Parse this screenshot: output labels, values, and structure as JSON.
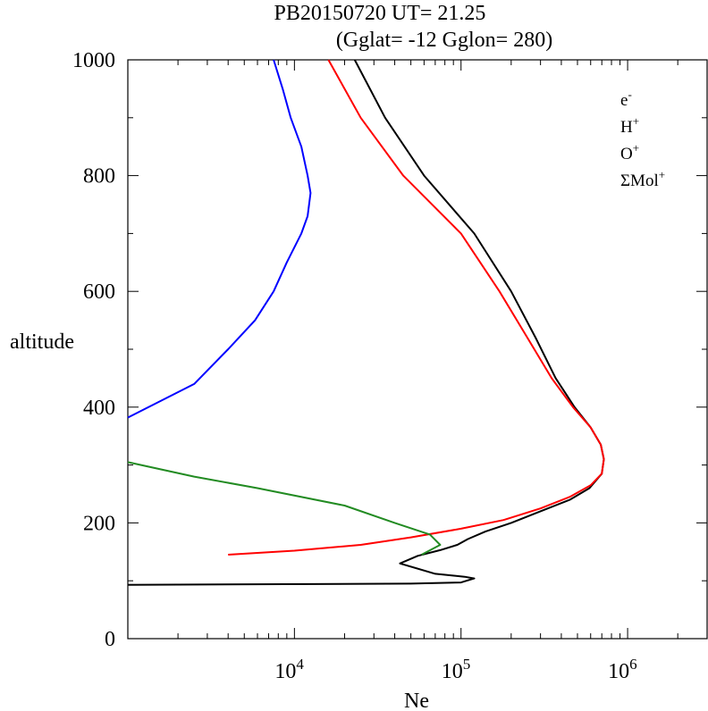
{
  "chart_data": {
    "type": "line",
    "title": "PB20150720   UT=  21.25",
    "subtitle": "(Gglat= -12   Gglon=  280)",
    "xlabel": "Ne",
    "ylabel": "altitude",
    "x_scale": "log",
    "xlim": [
      1000,
      3000000
    ],
    "ylim": [
      0,
      1000
    ],
    "x_ticks": [
      {
        "value": 10000,
        "base": "10",
        "exp": "4"
      },
      {
        "value": 100000,
        "base": "10",
        "exp": "5"
      },
      {
        "value": 1000000,
        "base": "10",
        "exp": "6"
      }
    ],
    "y_ticks": [
      {
        "value": 0,
        "label": "0"
      },
      {
        "value": 200,
        "label": "200"
      },
      {
        "value": 400,
        "label": "400"
      },
      {
        "value": 600,
        "label": "600"
      },
      {
        "value": 800,
        "label": "800"
      },
      {
        "value": 1000,
        "label": "1000"
      }
    ],
    "legend_position": "top-right",
    "series": [
      {
        "name": "e-",
        "label_base": "e",
        "label_sup": "-",
        "color": "#000000",
        "points": [
          [
            1000,
            93
          ],
          [
            50000,
            95
          ],
          [
            100000,
            97
          ],
          [
            120000,
            104
          ],
          [
            105000,
            107
          ],
          [
            70000,
            112
          ],
          [
            43000,
            130
          ],
          [
            55000,
            143
          ],
          [
            75000,
            153
          ],
          [
            95000,
            162
          ],
          [
            110000,
            172
          ],
          [
            140000,
            185
          ],
          [
            200000,
            200
          ],
          [
            300000,
            220
          ],
          [
            450000,
            240
          ],
          [
            590000,
            260
          ],
          [
            700000,
            285
          ],
          [
            720000,
            310
          ],
          [
            690000,
            335
          ],
          [
            600000,
            365
          ],
          [
            480000,
            400
          ],
          [
            370000,
            450
          ],
          [
            280000,
            520
          ],
          [
            200000,
            600
          ],
          [
            120000,
            700
          ],
          [
            60000,
            800
          ],
          [
            35000,
            900
          ],
          [
            23000,
            1000
          ]
        ]
      },
      {
        "name": "H+",
        "label_base": "H",
        "label_sup": "+",
        "color": "#0000ff",
        "points": [
          [
            1000,
            382
          ],
          [
            2500,
            440
          ],
          [
            4000,
            500
          ],
          [
            5800,
            550
          ],
          [
            7500,
            600
          ],
          [
            9000,
            650
          ],
          [
            11000,
            700
          ],
          [
            12000,
            730
          ],
          [
            12500,
            770
          ],
          [
            12000,
            800
          ],
          [
            11000,
            850
          ],
          [
            9500,
            900
          ],
          [
            8500,
            950
          ],
          [
            7500,
            1000
          ]
        ]
      },
      {
        "name": "O+",
        "label_base": "O",
        "label_sup": "+",
        "color": "#ff0000",
        "points": [
          [
            4000,
            145
          ],
          [
            10000,
            152
          ],
          [
            25000,
            162
          ],
          [
            50000,
            175
          ],
          [
            100000,
            190
          ],
          [
            180000,
            205
          ],
          [
            300000,
            225
          ],
          [
            450000,
            245
          ],
          [
            600000,
            265
          ],
          [
            700000,
            285
          ],
          [
            720000,
            310
          ],
          [
            690000,
            335
          ],
          [
            600000,
            365
          ],
          [
            470000,
            400
          ],
          [
            350000,
            450
          ],
          [
            250000,
            520
          ],
          [
            170000,
            600
          ],
          [
            100000,
            700
          ],
          [
            45000,
            800
          ],
          [
            25000,
            900
          ],
          [
            16000,
            1000
          ]
        ]
      },
      {
        "name": "ΣMol+",
        "label_base": "ΣMol",
        "label_sup": "+",
        "color": "#228b22",
        "points": [
          [
            58000,
            145
          ],
          [
            75000,
            162
          ],
          [
            65000,
            180
          ],
          [
            40000,
            200
          ],
          [
            20000,
            230
          ],
          [
            6000,
            260
          ],
          [
            2500,
            280
          ],
          [
            1000,
            305
          ]
        ]
      }
    ]
  }
}
